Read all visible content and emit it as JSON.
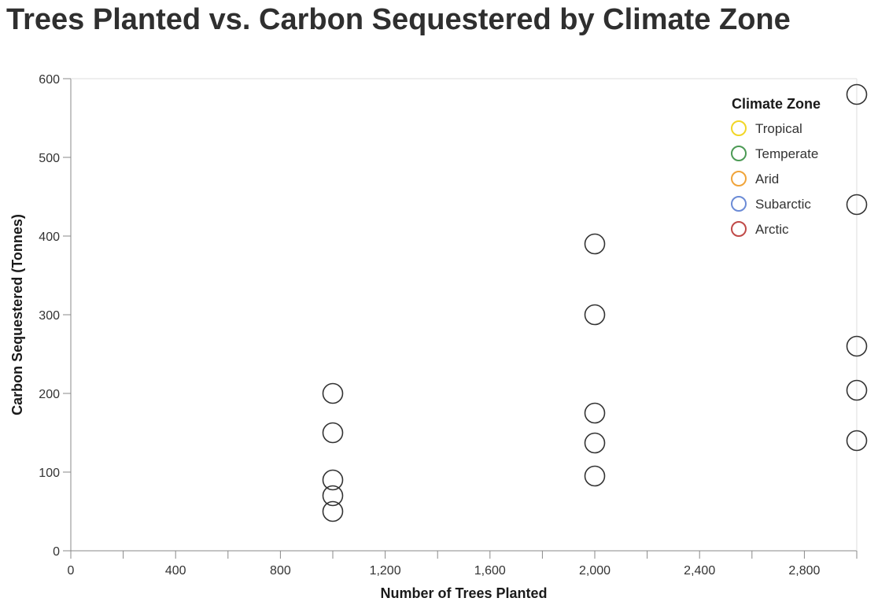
{
  "chart_data": {
    "type": "scatter",
    "title": "Trees Planted vs. Carbon Sequestered by Climate Zone",
    "xlabel": "Number of Trees Planted",
    "ylabel": "Carbon Sequestered (Tonnes)",
    "xlim": [
      0,
      3000
    ],
    "ylim": [
      0,
      600
    ],
    "x_ticks": [
      0,
      400,
      800,
      1200,
      1600,
      2000,
      2400,
      2800
    ],
    "x_minor_step": 200,
    "y_ticks": [
      0,
      100,
      200,
      300,
      400,
      500,
      600
    ],
    "grid": false,
    "legend": {
      "title": "Climate Zone",
      "position": "top-right",
      "entries": [
        {
          "name": "Tropical",
          "color": "#f2d627"
        },
        {
          "name": "Temperate",
          "color": "#4c9a55"
        },
        {
          "name": "Arid",
          "color": "#f0a43a"
        },
        {
          "name": "Subarctic",
          "color": "#6b8bd6"
        },
        {
          "name": "Arctic",
          "color": "#c04a48"
        }
      ]
    },
    "point_color": "#333333",
    "points": [
      {
        "x": 1000,
        "y": 200
      },
      {
        "x": 1000,
        "y": 150
      },
      {
        "x": 1000,
        "y": 90
      },
      {
        "x": 1000,
        "y": 70
      },
      {
        "x": 1000,
        "y": 50
      },
      {
        "x": 2000,
        "y": 390
      },
      {
        "x": 2000,
        "y": 300
      },
      {
        "x": 2000,
        "y": 175
      },
      {
        "x": 2000,
        "y": 137
      },
      {
        "x": 2000,
        "y": 95
      },
      {
        "x": 3000,
        "y": 580
      },
      {
        "x": 3000,
        "y": 440
      },
      {
        "x": 3000,
        "y": 260
      },
      {
        "x": 3000,
        "y": 204
      },
      {
        "x": 3000,
        "y": 140
      }
    ]
  }
}
